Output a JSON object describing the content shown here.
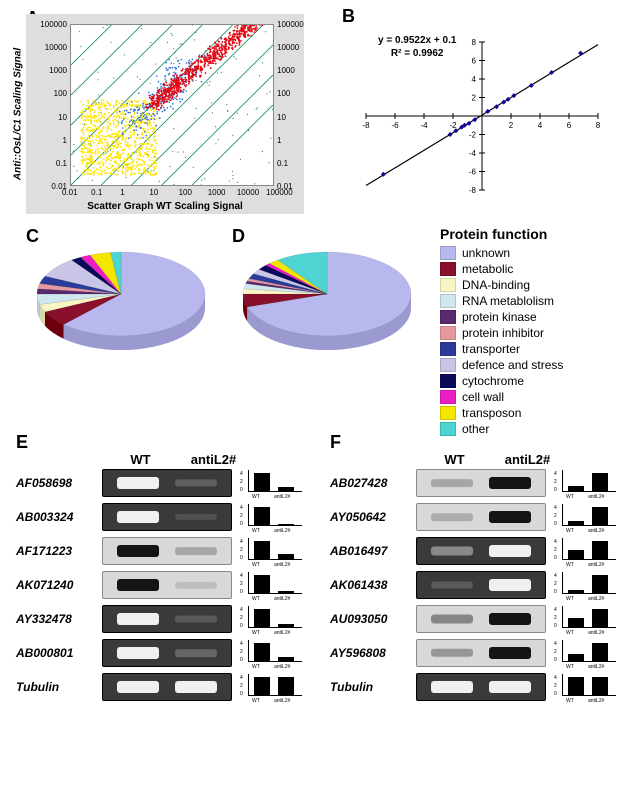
{
  "labels": {
    "A": "A",
    "B": "B",
    "C": "C",
    "D": "D",
    "E": "E",
    "F": "F"
  },
  "panelA": {
    "type": "scatter",
    "xlabel": "Scatter Graph WT Scaling Signal",
    "ylabel": "Anti::OsL/C1 Scaling Signal",
    "ticks": [
      "0.01",
      "0.1",
      "1",
      "10",
      "100",
      "1000",
      "10000",
      "100000"
    ],
    "scale": "log",
    "colors": {
      "low": "#ffe600",
      "mid": "#1f6bd6",
      "high": "#e30613",
      "green_dots": "#2e8b57",
      "guide": "#0a8a5a",
      "bg": "#dedede"
    }
  },
  "panelB": {
    "type": "scatter-line",
    "equation": "y = 0.9522x + 0.1",
    "r2": "R² = 0.9962",
    "xlim": [
      -8,
      8
    ],
    "ylim": [
      -8,
      8
    ],
    "tick_step": 2,
    "point_color": "#10069f",
    "line_color": "#000000",
    "points": [
      [
        -6.8,
        -6.3
      ],
      [
        -2.2,
        -2.0
      ],
      [
        -1.8,
        -1.6
      ],
      [
        -1.4,
        -1.2
      ],
      [
        -1.2,
        -1.0
      ],
      [
        -0.9,
        -0.8
      ],
      [
        -0.5,
        -0.4
      ],
      [
        0.4,
        0.5
      ],
      [
        1.0,
        1.0
      ],
      [
        1.5,
        1.5
      ],
      [
        1.8,
        1.8
      ],
      [
        2.2,
        2.2
      ],
      [
        3.4,
        3.3
      ],
      [
        4.8,
        4.7
      ],
      [
        6.8,
        6.8
      ]
    ]
  },
  "protein_legend": {
    "title": "Protein function",
    "items": [
      {
        "label": "unknown",
        "color": "#b8b8ef"
      },
      {
        "label": "metabolic",
        "color": "#8a0f2a"
      },
      {
        "label": "DNA-binding",
        "color": "#f9f5c5"
      },
      {
        "label": "RNA metablolism",
        "color": "#cfe8f0"
      },
      {
        "label": "protein kinase",
        "color": "#5a2a6e"
      },
      {
        "label": "protein inhibitor",
        "color": "#e59aa0"
      },
      {
        "label": "transporter",
        "color": "#2a3b9a"
      },
      {
        "label": "defence and stress",
        "color": "#c9c5e6"
      },
      {
        "label": "cytochrome",
        "color": "#0a0a5a"
      },
      {
        "label": "cell wall",
        "color": "#e91ec5"
      },
      {
        "label": "transposon",
        "color": "#f5e600"
      },
      {
        "label": "other",
        "color": "#4fd4d4"
      }
    ]
  },
  "panelC": {
    "type": "pie",
    "slices": [
      {
        "label": "unknown",
        "value": 62,
        "color": "#b8b8ef"
      },
      {
        "label": "metabolic",
        "value": 6,
        "color": "#8a0f2a"
      },
      {
        "label": "DNA-binding",
        "value": 3,
        "color": "#f9f5c5"
      },
      {
        "label": "RNA metablolism",
        "value": 4,
        "color": "#cfe8f0"
      },
      {
        "label": "protein kinase",
        "value": 2,
        "color": "#5a2a6e"
      },
      {
        "label": "protein inhibitor",
        "value": 2,
        "color": "#e59aa0"
      },
      {
        "label": "transporter",
        "value": 3,
        "color": "#2a3b9a"
      },
      {
        "label": "defence and stress",
        "value": 8,
        "color": "#c9c5e6"
      },
      {
        "label": "cytochrome",
        "value": 2,
        "color": "#0a0a5a"
      },
      {
        "label": "cell wall",
        "value": 2,
        "color": "#e91ec5"
      },
      {
        "label": "transposon",
        "value": 4,
        "color": "#f5e600"
      },
      {
        "label": "other",
        "value": 2,
        "color": "#4fd4d4"
      }
    ]
  },
  "panelD": {
    "type": "pie",
    "slices": [
      {
        "label": "unknown",
        "value": 70,
        "color": "#b8b8ef"
      },
      {
        "label": "metabolic",
        "value": 5,
        "color": "#8a0f2a"
      },
      {
        "label": "DNA-binding",
        "value": 2,
        "color": "#f9f5c5"
      },
      {
        "label": "RNA metablolism",
        "value": 2,
        "color": "#cfe8f0"
      },
      {
        "label": "protein kinase",
        "value": 1,
        "color": "#5a2a6e"
      },
      {
        "label": "protein inhibitor",
        "value": 1,
        "color": "#e59aa0"
      },
      {
        "label": "transporter",
        "value": 2,
        "color": "#2a3b9a"
      },
      {
        "label": "defence and stress",
        "value": 2,
        "color": "#c9c5e6"
      },
      {
        "label": "cytochrome",
        "value": 2,
        "color": "#0a0a5a"
      },
      {
        "label": "cell wall",
        "value": 1,
        "color": "#e91ec5"
      },
      {
        "label": "transposon",
        "value": 2,
        "color": "#f5e600"
      },
      {
        "label": "other",
        "value": 10,
        "color": "#4fd4d4"
      }
    ]
  },
  "gel": {
    "header": {
      "wt": "WT",
      "cond": "antiL2#",
      "bar_wt": "WT",
      "bar_cond": "antiL2#"
    },
    "tubulin": "Tubulin",
    "E": [
      {
        "gene": "AF058698",
        "wt": 1.0,
        "anti": 0.2,
        "bg": "dark"
      },
      {
        "gene": "AB003324",
        "wt": 1.0,
        "anti": 0.05,
        "bg": "dark"
      },
      {
        "gene": "AF171223",
        "wt": 1.0,
        "anti": 0.3,
        "bg": "light"
      },
      {
        "gene": "AK071240",
        "wt": 1.0,
        "anti": 0.1,
        "bg": "light"
      },
      {
        "gene": "AY332478",
        "wt": 1.0,
        "anti": 0.15,
        "bg": "dark"
      },
      {
        "gene": "AB000801",
        "wt": 1.0,
        "anti": 0.25,
        "bg": "dark"
      }
    ],
    "F": [
      {
        "gene": "AB027428",
        "wt": 0.3,
        "anti": 1.0,
        "bg": "light"
      },
      {
        "gene": "AY050642",
        "wt": 0.25,
        "anti": 1.0,
        "bg": "light"
      },
      {
        "gene": "AB016497",
        "wt": 0.5,
        "anti": 1.0,
        "bg": "dark"
      },
      {
        "gene": "AK061438",
        "wt": 0.15,
        "anti": 1.0,
        "bg": "dark"
      },
      {
        "gene": "AU093050",
        "wt": 0.5,
        "anti": 1.0,
        "bg": "light"
      },
      {
        "gene": "AY596808",
        "wt": 0.4,
        "anti": 1.0,
        "bg": "light"
      }
    ],
    "tubulin_row": {
      "wt": 1.0,
      "anti": 1.0,
      "bg": "dark"
    }
  }
}
